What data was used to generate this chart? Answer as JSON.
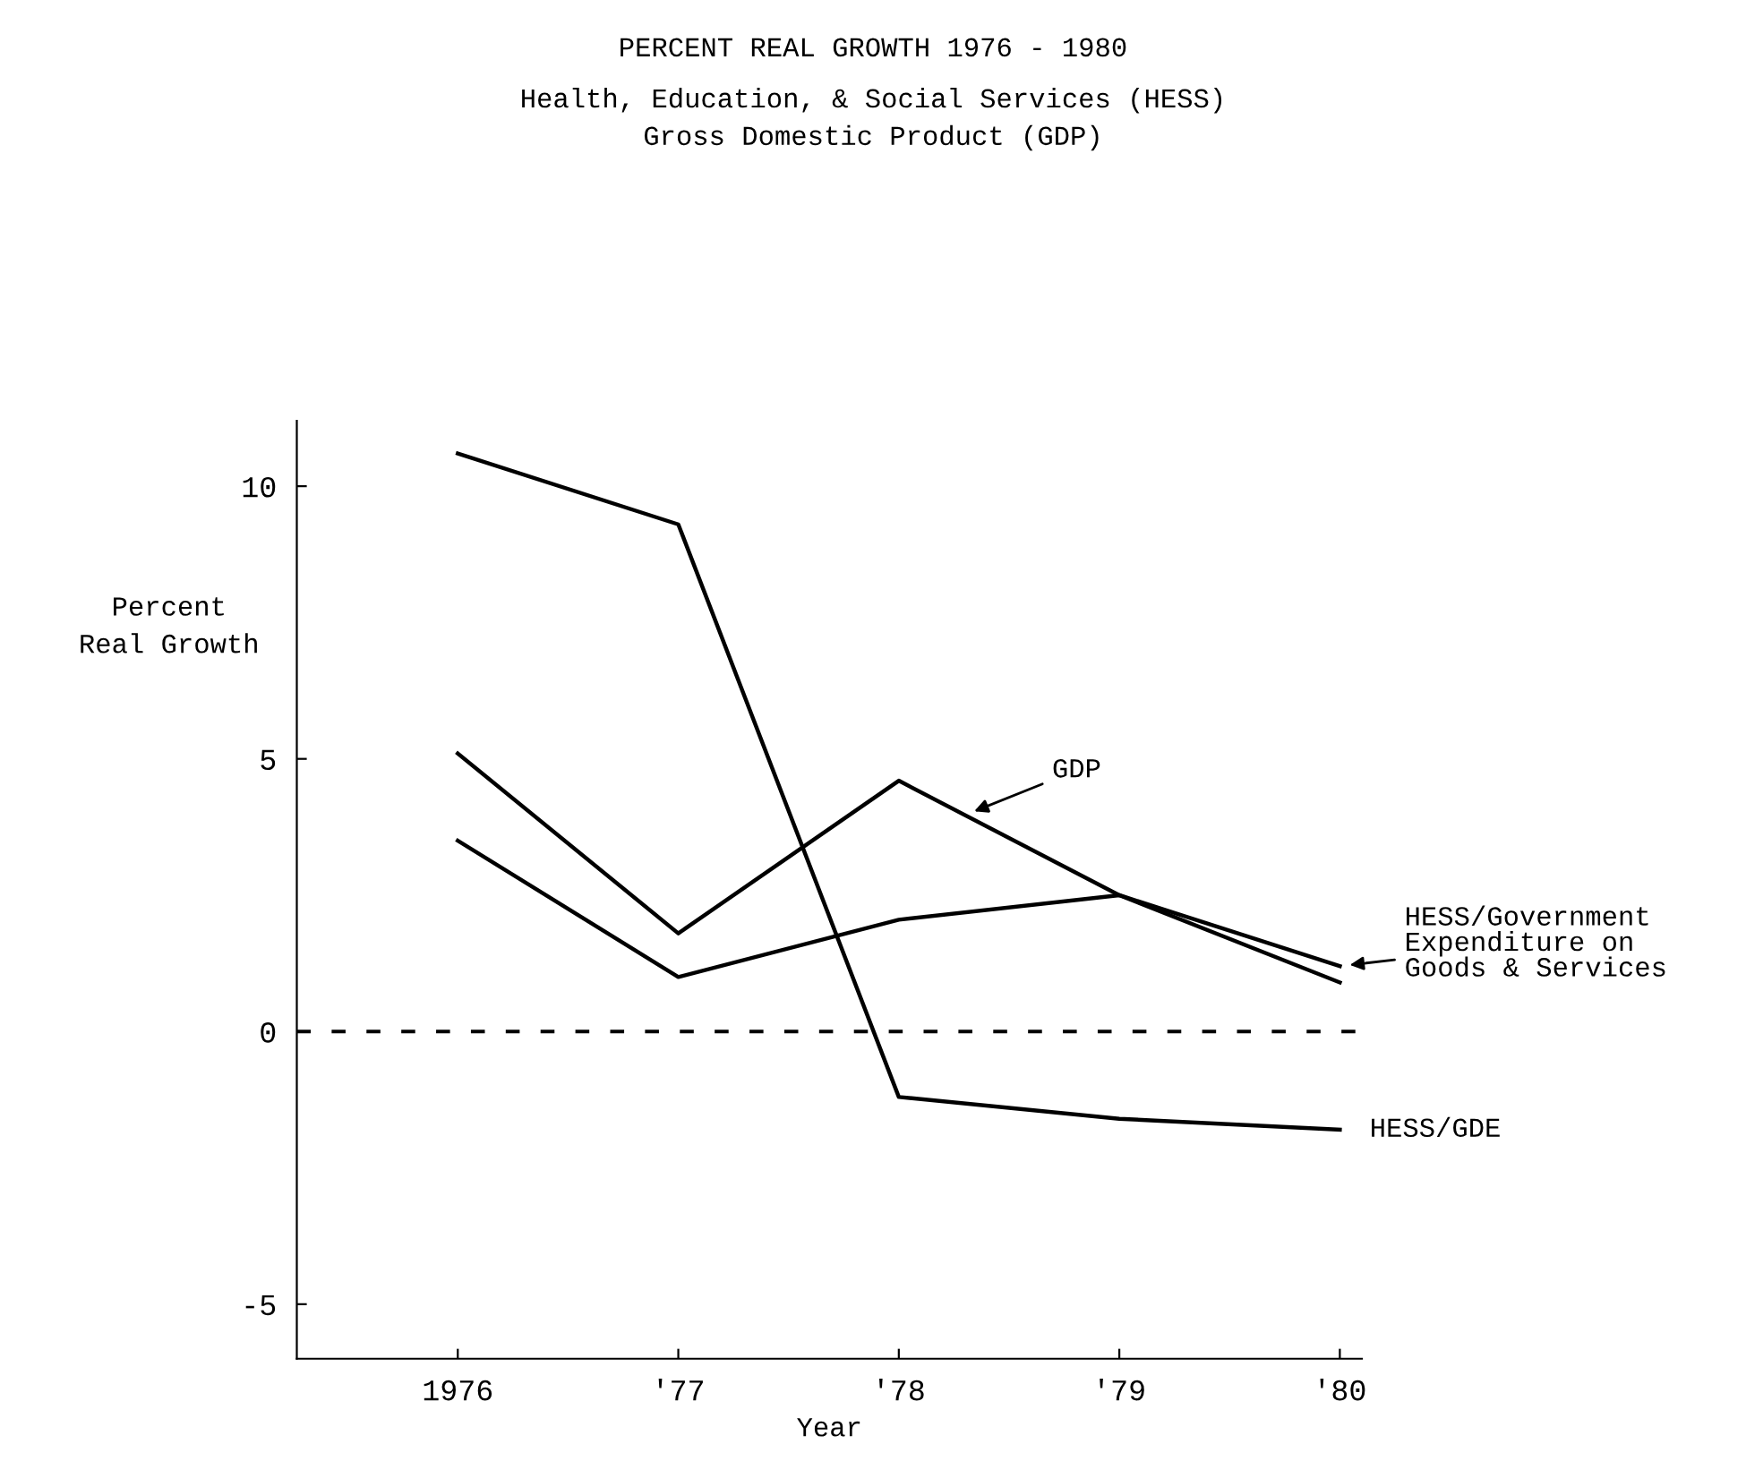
{
  "chart_data": {
    "type": "line",
    "title": "PERCENT REAL GROWTH 1976 - 1980",
    "subtitle": "Health, Education, & Social Services (HESS)\nGross Domestic Product (GDP)",
    "xlabel": "Year",
    "ylabel": "Percent\nReal Growth",
    "x": [
      1976,
      1977,
      1978,
      1979,
      1980
    ],
    "series": [
      {
        "name": "HESS/GDE",
        "color": "#000000",
        "values": [
          10.6,
          9.3,
          -1.2,
          -1.6,
          -1.8
        ]
      },
      {
        "name": "GDP",
        "color": "#000000",
        "values": [
          5.1,
          1.8,
          4.6,
          2.5,
          0.9
        ]
      },
      {
        "name": "HESS/Government\nExpenditure on\nGoods & Services",
        "color": "#000000",
        "values": [
          3.5,
          1.0,
          2.05,
          2.5,
          1.2
        ]
      }
    ],
    "xlim": [
      1975.27,
      1980.1
    ],
    "xticks": [
      {
        "value": 1976,
        "label": "1976"
      },
      {
        "value": 1977,
        "label": "'77"
      },
      {
        "value": 1978,
        "label": "'78"
      },
      {
        "value": 1979,
        "label": "'79"
      },
      {
        "value": 1980,
        "label": "'80"
      }
    ],
    "ylim": [
      -6,
      11.2
    ],
    "yticks": [
      -5,
      0,
      5,
      10
    ],
    "ref_lines": [
      {
        "axis": "y",
        "value": 0,
        "color": "#000000",
        "line_style": "dashed"
      }
    ],
    "grid": false,
    "legend": false,
    "marker": "none",
    "line_style": "solid"
  }
}
